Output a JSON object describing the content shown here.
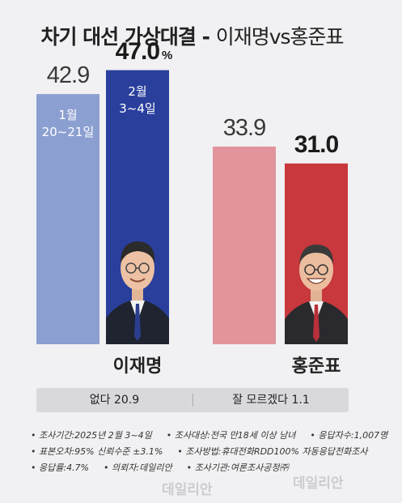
{
  "title": {
    "main": "차기 대선 가상대결 -",
    "matchup": "이재명vs홍준표"
  },
  "chart_data": {
    "type": "bar",
    "title": "차기 대선 가상대결 - 이재명vs홍준표",
    "unit": "%",
    "periods": [
      {
        "line1": "1월",
        "line2": "20~21일"
      },
      {
        "line1": "2월",
        "line2": "3~4일"
      }
    ],
    "categories": [
      "이재명",
      "홍준표"
    ],
    "series": [
      {
        "name": "1월 20~21일",
        "values": [
          42.9,
          33.9
        ]
      },
      {
        "name": "2월 3~4일",
        "values": [
          47.0,
          31.0
        ]
      }
    ],
    "labels": [
      [
        "42.9",
        "47.0"
      ],
      [
        "33.9",
        "31.0"
      ]
    ],
    "colors": {
      "lee_prev": "#8c9fd1",
      "lee_curr": "#2a3f9c",
      "hong_prev": "#e1949b",
      "hong_curr": "#c8383c"
    }
  },
  "summary": {
    "none": "없다 20.9",
    "unsure": "잘 모르겠다 1.1"
  },
  "notes": [
    [
      "조사기간:2025년 2월 3~4일",
      "조사대상:전국 만18세 이상 남녀",
      "응답자수:1,007명"
    ],
    [
      "표본오차:95% 신뢰수준 ±3.1%",
      "조사방법:휴대전화RDD100% 자동응답전화조사"
    ],
    [
      "응답률:4.7%",
      "의뢰자:데일리안",
      "조사기관:여론조사공정㈜"
    ]
  ],
  "watermark": "데일리안"
}
